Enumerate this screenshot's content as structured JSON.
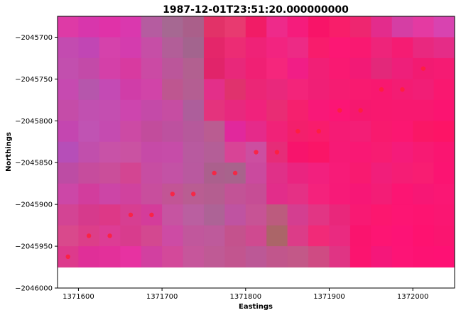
{
  "chart_data": {
    "type": "heatmap",
    "title": "1987-12-01T23:51:20.000000000",
    "xlabel": "Eastings",
    "ylabel": "Northings",
    "xlim": [
      1371575,
      1372050
    ],
    "ylim": [
      -2046000,
      -2045675
    ],
    "cell_size": 25,
    "x_ticks": [
      {
        "value": 1371600,
        "label": "1371600"
      },
      {
        "value": 1371700,
        "label": "1371700"
      },
      {
        "value": 1371800,
        "label": "1371800"
      },
      {
        "value": 1371900,
        "label": "1371900"
      },
      {
        "value": 1372000,
        "label": "1372000"
      }
    ],
    "y_ticks": [
      {
        "value": -2045700,
        "label": "−2045700"
      },
      {
        "value": -2045750,
        "label": "−2045750"
      },
      {
        "value": -2045800,
        "label": "−2045800"
      },
      {
        "value": -2045850,
        "label": "−2045850"
      },
      {
        "value": -2045900,
        "label": "−2045900"
      },
      {
        "value": -2045950,
        "label": "−2045950"
      },
      {
        "value": -2046000,
        "label": "−2046000"
      }
    ],
    "cell_colors": [
      [
        "#de3aa6",
        "#d836ac",
        "#e032a8",
        "#da38ae",
        "#b55ca0",
        "#a66892",
        "#aa5f8a",
        "#e23268",
        "#e83a70",
        "#f11c66",
        "#ee2a8a",
        "#f51c7c",
        "#f81468",
        "#f81e6a",
        "#ee2670",
        "#e32c8c",
        "#d53ea4",
        "#e43aa2",
        "#d843b0"
      ],
      [
        "#c34bb0",
        "#c146b4",
        "#d542ab",
        "#d43cae",
        "#c64ea6",
        "#b25e98",
        "#a3648e",
        "#e4266a",
        "#ec2c74",
        "#ef2277",
        "#f22480",
        "#ed2a85",
        "#f81c6c",
        "#fc1774",
        "#f91971",
        "#ee247a",
        "#f51c73",
        "#e9287f",
        "#e52c87"
      ],
      [
        "#c24fae",
        "#c34aa8",
        "#d440a8",
        "#d83aa0",
        "#cb4aa4",
        "#bb569a",
        "#b26090",
        "#e1246a",
        "#e8287a",
        "#f02074",
        "#f5267c",
        "#f11e86",
        "#f11f76",
        "#f91972",
        "#f21a76",
        "#e3287a",
        "#ee1f7a",
        "#f21b72",
        "#f51b73"
      ],
      [
        "#c64ab0",
        "#b656ac",
        "#c44ab4",
        "#d03da8",
        "#d144a8",
        "#be5690",
        "#b45e92",
        "#e32f89",
        "#e0326d",
        "#eb2676",
        "#e9287c",
        "#f3247a",
        "#f01f76",
        "#f51c72",
        "#f81a70",
        "#f81870",
        "#f31c73",
        "#f11e76",
        "#f91870"
      ],
      [
        "#c54ca8",
        "#c150b0",
        "#c44eb0",
        "#cd45ae",
        "#c44aa8",
        "#c64da2",
        "#ad5e9b",
        "#e4337d",
        "#e8287e",
        "#f0227c",
        "#e92c74",
        "#f5206e",
        "#f81878",
        "#fc1575",
        "#f6186f",
        "#f8186f",
        "#f81870",
        "#f81870",
        "#fb1471"
      ],
      [
        "#c446b0",
        "#c053b3",
        "#c54bb0",
        "#cc4aa4",
        "#c24c9c",
        "#bd519f",
        "#b6599b",
        "#ba5c91",
        "#e1289c",
        "#e52a8a",
        "#f02278",
        "#f31f6c",
        "#f81c6c",
        "#f51b75",
        "#f31e76",
        "#f81a6e",
        "#fb1771",
        "#fa1766",
        "#fd1466"
      ],
      [
        "#b64eb8",
        "#c14fac",
        "#c852a7",
        "#ca52a2",
        "#c64aa7",
        "#c64ca8",
        "#b85a9f",
        "#b45e97",
        "#d84496",
        "#cc4ea0",
        "#e62c78",
        "#f7146c",
        "#fa1567",
        "#f61a76",
        "#f91874",
        "#f71c72",
        "#f51b7a",
        "#f71a73",
        "#fa1571"
      ],
      [
        "#bd4ca4",
        "#c64c9d",
        "#ca4e9a",
        "#d34592",
        "#c74da2",
        "#c352a5",
        "#b9599f",
        "#ab608d",
        "#a8638c",
        "#ca4a9e",
        "#e03088",
        "#ea2480",
        "#f2207e",
        "#f71b78",
        "#f81a70",
        "#f11e7a",
        "#f51d75",
        "#f81d72",
        "#fb1472"
      ],
      [
        "#cc47a7",
        "#d23d9d",
        "#cc45a6",
        "#d0429e",
        "#c84e9d",
        "#c25595",
        "#b95d92",
        "#b45e90",
        "#c25396",
        "#c64d95",
        "#e22d8a",
        "#e53085",
        "#f4227c",
        "#f71a78",
        "#f71776",
        "#f31d76",
        "#fc1573",
        "#f71775",
        "#fa1774"
      ],
      [
        "#d34494",
        "#d63a8c",
        "#dd3887",
        "#d73e91",
        "#d43c9a",
        "#c654a1",
        "#ba5fa0",
        "#ad6396",
        "#bf53a1",
        "#c75395",
        "#bc5b7e",
        "#d43e90",
        "#e23584",
        "#e9277b",
        "#f81973",
        "#fc176f",
        "#fd1573",
        "#fd1471",
        "#fa1672"
      ],
      [
        "#d9498c",
        "#dc3e89",
        "#dd3c94",
        "#d83c8d",
        "#d34890",
        "#cd4ba4",
        "#c1579c",
        "#be5a9b",
        "#c4528d",
        "#cf4a90",
        "#ab6568",
        "#dc3c88",
        "#f12a78",
        "#ea2a80",
        "#fa146e",
        "#fd1573",
        "#fd1376",
        "#fe1270",
        "#fa1570"
      ],
      [
        "#dd3a8c",
        "#e02f98",
        "#e3309a",
        "#e732a1",
        "#d240a0",
        "#d3499a",
        "#c6569b",
        "#bf5a95",
        "#c2558f",
        "#bc5896",
        "#c1568c",
        "#c35888",
        "#cf4b83",
        "#e03484",
        "#fb146f",
        "#f5177a",
        "#fd1476",
        "#fd1273",
        "#fe1174"
      ]
    ],
    "points": [
      {
        "x": 1371587.5,
        "y": -2045962.5
      },
      {
        "x": 1371612.5,
        "y": -2045937.5
      },
      {
        "x": 1371637.5,
        "y": -2045937.5
      },
      {
        "x": 1371662.5,
        "y": -2045912.5
      },
      {
        "x": 1371687.5,
        "y": -2045912.5
      },
      {
        "x": 1371712.5,
        "y": -2045887.5
      },
      {
        "x": 1371737.5,
        "y": -2045887.5
      },
      {
        "x": 1371762.5,
        "y": -2045862.5
      },
      {
        "x": 1371787.5,
        "y": -2045862.5
      },
      {
        "x": 1371812.5,
        "y": -2045837.5
      },
      {
        "x": 1371837.5,
        "y": -2045837.5
      },
      {
        "x": 1371862.5,
        "y": -2045812.5
      },
      {
        "x": 1371887.5,
        "y": -2045812.5
      },
      {
        "x": 1371912.5,
        "y": -2045787.5
      },
      {
        "x": 1371937.5,
        "y": -2045787.5
      },
      {
        "x": 1371962.5,
        "y": -2045762.5
      },
      {
        "x": 1371987.5,
        "y": -2045762.5
      },
      {
        "x": 1372012.5,
        "y": -2045737.5
      }
    ],
    "point_color": "#ff1f3a",
    "grid": false,
    "legend": "none"
  }
}
